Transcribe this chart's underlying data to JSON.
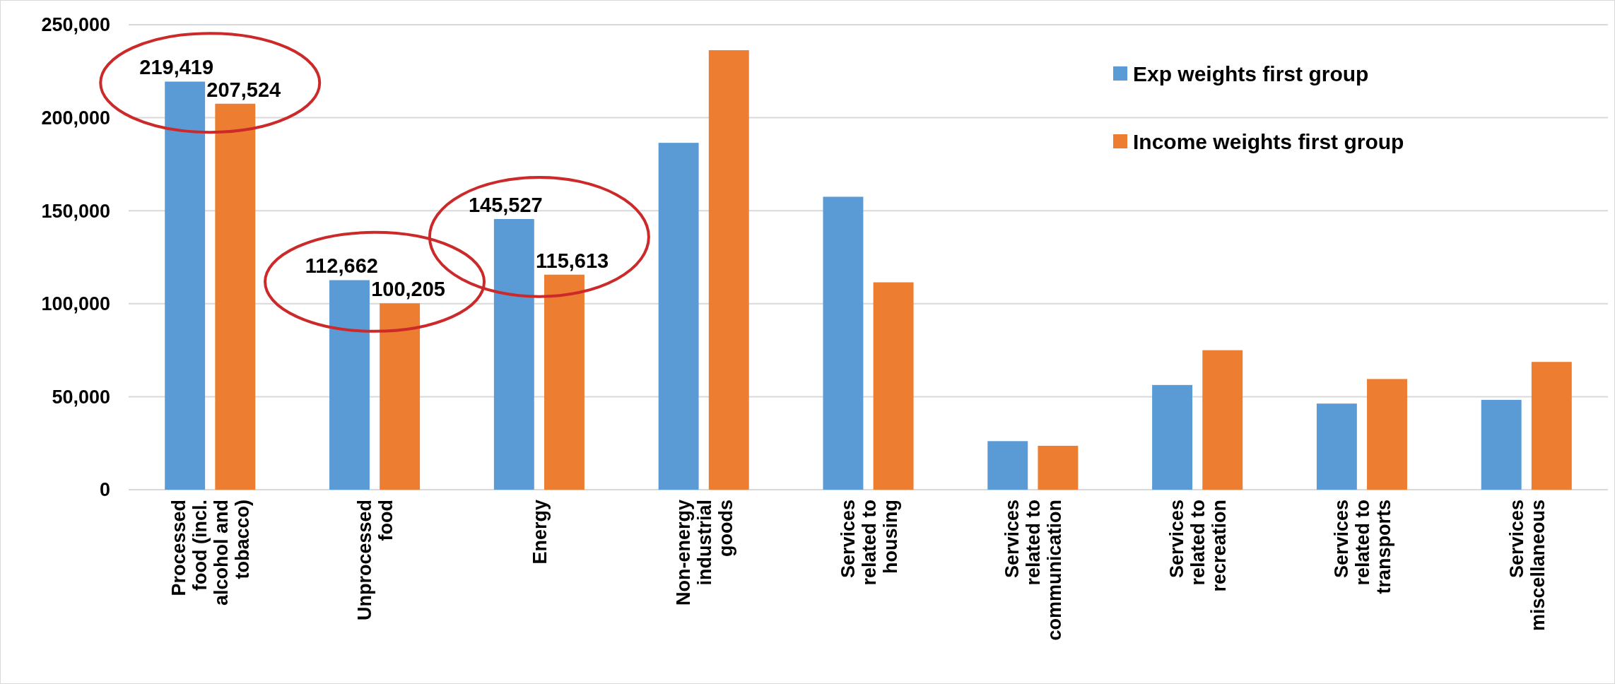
{
  "chart_data": {
    "type": "bar",
    "categories": [
      "Processed food (incl. alcohol and tobacco)",
      "Unprocessed food",
      "Energy",
      "Non-energy industrial goods",
      "Services related to housing",
      "Services related to communication",
      "Services related to recreation",
      "Services related to transports",
      "Services miscellaneous"
    ],
    "series": [
      {
        "name": "Exp weights first group",
        "color": "#5b9bd5",
        "values": [
          219419,
          112662,
          145527,
          186500,
          157500,
          26100,
          56300,
          46300,
          48300
        ],
        "value_labels": [
          "219,419",
          "112,662",
          "145,527",
          null,
          null,
          null,
          null,
          null,
          null
        ]
      },
      {
        "name": "Income weights first group",
        "color": "#ed7d31",
        "values": [
          207524,
          100205,
          115613,
          236300,
          111500,
          23600,
          75000,
          59500,
          68700
        ],
        "value_labels": [
          "207,524",
          "100,205",
          "115,613",
          null,
          null,
          null,
          null,
          null,
          null
        ]
      }
    ],
    "ylim": [
      0,
      250000
    ],
    "yticks": [
      {
        "value": 0,
        "label": "0"
      },
      {
        "value": 50000,
        "label": "50,000"
      },
      {
        "value": 100000,
        "label": "100,000"
      },
      {
        "value": 150000,
        "label": "150,000"
      },
      {
        "value": 200000,
        "label": "200,000"
      },
      {
        "value": 250000,
        "label": "250,000"
      }
    ],
    "grid": "y",
    "legend": "top right"
  }
}
